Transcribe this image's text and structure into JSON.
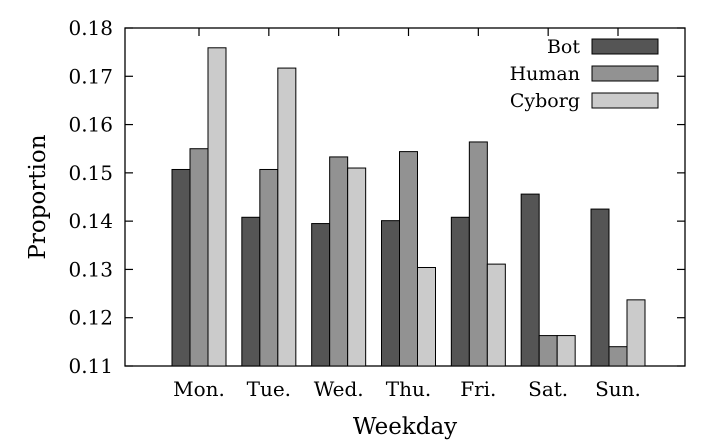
{
  "chart_data": {
    "type": "bar",
    "title": "",
    "xlabel": "Weekday",
    "ylabel": "Proportion",
    "ylim": [
      0.11,
      0.18
    ],
    "yticks": [
      "0.11",
      "0.12",
      "0.13",
      "0.14",
      "0.15",
      "0.16",
      "0.17",
      "0.18"
    ],
    "categories": [
      "Mon.",
      "Tue.",
      "Wed.",
      "Thu.",
      "Fri.",
      "Sat.",
      "Sun."
    ],
    "legend_position": "top-right",
    "grid": false,
    "series": [
      {
        "name": "Bot",
        "color": "#555555",
        "values": [
          0.1507,
          0.1408,
          0.1395,
          0.1401,
          0.1408,
          0.1456,
          0.1425
        ]
      },
      {
        "name": "Human",
        "color": "#929292",
        "values": [
          0.155,
          0.1507,
          0.1533,
          0.1544,
          0.1564,
          0.1163,
          0.114
        ]
      },
      {
        "name": "Cyborg",
        "color": "#cbcbcb",
        "values": [
          0.1759,
          0.1717,
          0.151,
          0.1304,
          0.1311,
          0.1163,
          0.1237
        ]
      }
    ]
  }
}
